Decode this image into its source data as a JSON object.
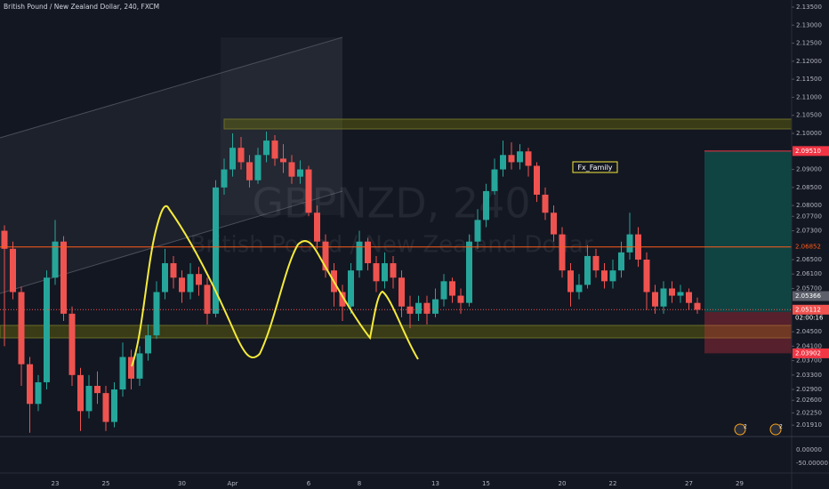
{
  "chart_data": {
    "type": "candlestick",
    "title": "British Pound / New Zealand Dollar, 240, FXCM",
    "watermark": [
      "GBPNZD, 240",
      "British Pound / New Zealand Dollar"
    ],
    "annotation": "Fx_Family",
    "categories": [
      null,
      null,
      null,
      null,
      null,
      null,
      "23",
      null,
      null,
      null,
      null,
      null,
      "25",
      null,
      null,
      null,
      null,
      null,
      null,
      null,
      null,
      "30",
      null,
      null,
      null,
      null,
      null,
      "Apr",
      null,
      null,
      null,
      null,
      null,
      null,
      null,
      null,
      "6",
      null,
      null,
      null,
      null,
      null,
      "8",
      null,
      null,
      null,
      null,
      null,
      null,
      null,
      null,
      "13",
      null,
      null,
      null,
      null,
      null,
      "15",
      null,
      null,
      null,
      null,
      null,
      null,
      null,
      null,
      "20",
      null,
      null,
      null,
      null,
      null,
      "22",
      null,
      null,
      null,
      null,
      null,
      null,
      null,
      null,
      "27",
      null,
      null,
      null,
      null,
      null,
      "29"
    ],
    "open": [
      2.073,
      2.068,
      2.056,
      2.036,
      2.025,
      2.031,
      2.06,
      2.07,
      2.05,
      2.033,
      2.023,
      2.03,
      2.028,
      2.02,
      2.029,
      2.038,
      2.032,
      2.039,
      2.044,
      2.056,
      2.064,
      2.06,
      2.056,
      2.061,
      2.058,
      2.05,
      2.085,
      2.09,
      2.096,
      2.092,
      2.087,
      2.094,
      2.098,
      2.093,
      2.092,
      2.088,
      2.09,
      2.078,
      2.07,
      2.062,
      2.056,
      2.052,
      2.062,
      2.07,
      2.064,
      2.059,
      2.064,
      2.06,
      2.052,
      2.05,
      2.053,
      2.05,
      2.054,
      2.059,
      2.055,
      2.053,
      2.07,
      2.076,
      2.084,
      2.09,
      2.094,
      2.092,
      2.095,
      2.091,
      2.083,
      2.078,
      2.072,
      2.062,
      2.056,
      2.058,
      2.066,
      2.062,
      2.059,
      2.062,
      2.067,
      2.072,
      2.065,
      2.056,
      2.052,
      2.057,
      2.055,
      2.056,
      2.053,
      null,
      null,
      null,
      null,
      null
    ],
    "high": [
      2.0745,
      2.07,
      2.0575,
      2.038,
      2.033,
      2.062,
      2.076,
      2.0715,
      2.052,
      2.035,
      2.033,
      2.034,
      2.03,
      2.031,
      2.042,
      2.04,
      2.041,
      2.047,
      2.059,
      2.068,
      2.066,
      2.062,
      2.064,
      2.063,
      2.06,
      2.087,
      2.093,
      2.1,
      2.099,
      2.094,
      2.096,
      2.1005,
      2.0995,
      2.097,
      2.094,
      2.0925,
      2.091,
      2.08,
      2.072,
      2.064,
      2.058,
      2.064,
      2.073,
      2.071,
      2.066,
      2.067,
      2.066,
      2.062,
      2.055,
      2.055,
      2.055,
      2.057,
      2.061,
      2.06,
      2.057,
      2.072,
      2.079,
      2.086,
      2.093,
      2.098,
      2.0975,
      2.097,
      2.096,
      2.092,
      2.085,
      2.08,
      2.074,
      2.064,
      2.061,
      2.069,
      2.068,
      2.064,
      2.065,
      2.07,
      2.078,
      2.074,
      2.067,
      2.058,
      2.059,
      2.059,
      2.058,
      2.057,
      2.0545,
      null,
      null,
      null,
      null,
      null
    ],
    "low": [
      2.041,
      2.054,
      2.03,
      2.017,
      2.023,
      2.029,
      2.058,
      2.048,
      2.03,
      2.0175,
      2.021,
      2.025,
      2.0175,
      2.0185,
      2.027,
      2.029,
      2.03,
      2.037,
      2.043,
      2.054,
      2.057,
      2.053,
      2.054,
      2.055,
      2.047,
      2.049,
      2.083,
      2.088,
      2.09,
      2.085,
      2.086,
      2.092,
      2.091,
      2.089,
      2.086,
      2.086,
      2.077,
      2.068,
      2.06,
      2.052,
      2.048,
      2.05,
      2.06,
      2.062,
      2.056,
      2.057,
      2.057,
      2.049,
      2.046,
      2.048,
      2.047,
      2.049,
      2.052,
      2.053,
      2.05,
      2.052,
      2.068,
      2.074,
      2.083,
      2.088,
      2.09,
      2.09,
      2.088,
      2.081,
      2.076,
      2.07,
      2.06,
      2.052,
      2.054,
      2.057,
      2.06,
      2.057,
      2.057,
      2.06,
      2.065,
      2.063,
      2.051,
      2.05,
      2.05,
      2.053,
      2.053,
      2.051,
      2.05,
      null,
      null,
      null,
      null,
      null
    ],
    "close": [
      2.068,
      2.056,
      2.036,
      2.025,
      2.031,
      2.06,
      2.07,
      2.05,
      2.033,
      2.023,
      2.03,
      2.028,
      2.02,
      2.029,
      2.038,
      2.032,
      2.039,
      2.044,
      2.056,
      2.064,
      2.06,
      2.056,
      2.061,
      2.058,
      2.05,
      2.085,
      2.09,
      2.096,
      2.092,
      2.087,
      2.094,
      2.098,
      2.093,
      2.092,
      2.088,
      2.09,
      2.078,
      2.07,
      2.062,
      2.056,
      2.052,
      2.062,
      2.07,
      2.064,
      2.059,
      2.064,
      2.06,
      2.052,
      2.05,
      2.053,
      2.05,
      2.054,
      2.059,
      2.055,
      2.053,
      2.07,
      2.076,
      2.084,
      2.09,
      2.094,
      2.092,
      2.095,
      2.091,
      2.083,
      2.078,
      2.072,
      2.062,
      2.056,
      2.058,
      2.066,
      2.062,
      2.059,
      2.062,
      2.067,
      2.072,
      2.065,
      2.056,
      2.052,
      2.057,
      2.055,
      2.056,
      2.053,
      2.0511,
      null,
      null,
      null,
      null,
      null
    ],
    "up_color": "#26a69a",
    "down_color": "#ef5350",
    "ylim": [
      2.01595,
      2.13697
    ],
    "yticks": [
      {
        "value": 2.135,
        "label": "2.13500"
      },
      {
        "value": 2.13,
        "label": "2.13000"
      },
      {
        "value": 2.125,
        "label": "2.12500"
      },
      {
        "value": 2.12,
        "label": "2.12000"
      },
      {
        "value": 2.115,
        "label": "2.11500"
      },
      {
        "value": 2.11,
        "label": "2.11000"
      },
      {
        "value": 2.105,
        "label": "2.10500"
      },
      {
        "value": 2.1,
        "label": "2.10000"
      },
      {
        "value": 2.09,
        "label": "2.09000"
      },
      {
        "value": 2.085,
        "label": "2.08500"
      },
      {
        "value": 2.08,
        "label": "2.08000"
      },
      {
        "value": 2.077,
        "label": "2.07700"
      },
      {
        "value": 2.073,
        "label": "2.07300"
      },
      {
        "value": 2.065,
        "label": "2.06500"
      },
      {
        "value": 2.061,
        "label": "2.06100"
      },
      {
        "value": 2.057,
        "label": "2.05700"
      },
      {
        "value": 2.045,
        "label": "2.04500"
      },
      {
        "value": 2.041,
        "label": "2.04100"
      },
      {
        "value": 2.037,
        "label": "2.03700"
      },
      {
        "value": 2.033,
        "label": "2.03300"
      },
      {
        "value": 2.029,
        "label": "2.02900"
      },
      {
        "value": 2.026,
        "label": "2.02600"
      },
      {
        "value": 2.0225,
        "label": "2.02250"
      },
      {
        "value": 2.0191,
        "label": "2.01910"
      }
    ],
    "grid": false,
    "position": {
      "target": {
        "value": 2.0951,
        "label": "2.09510"
      },
      "entry": 2.0505,
      "stop": {
        "value": 2.03902,
        "label": "2.03902"
      }
    },
    "alert": {
      "value": 2.06852,
      "label": "2.06852"
    },
    "last_price": {
      "value": 2.05366,
      "label": "2.05366"
    },
    "current_price": {
      "value": 2.05112,
      "label": "2.05112",
      "countdown": "02:00:16"
    },
    "indicator_ticks": [
      "0.00000",
      "-50.00000"
    ],
    "badges": [
      "2",
      "2"
    ]
  }
}
